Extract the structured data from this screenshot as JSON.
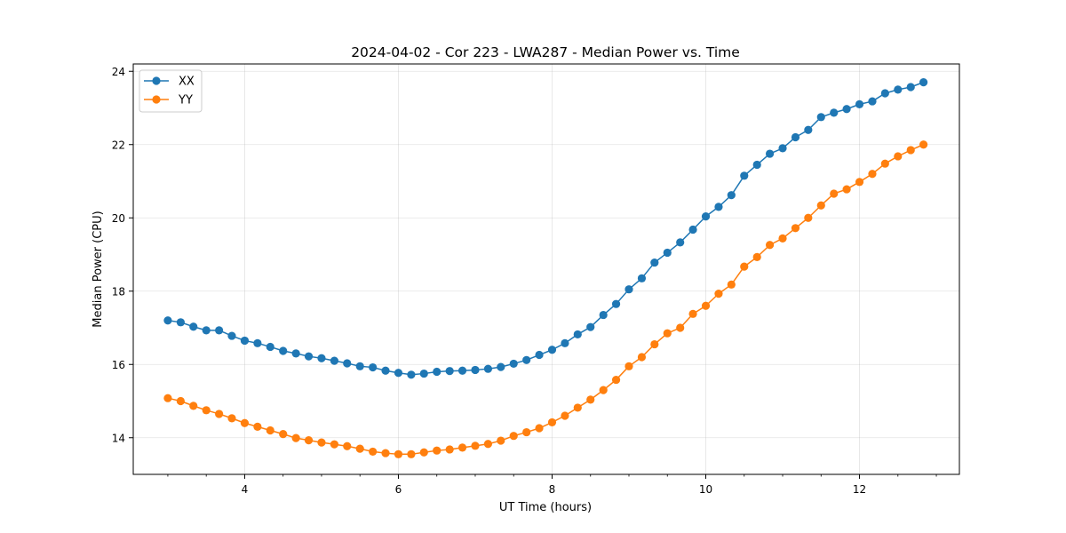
{
  "chart_data": {
    "type": "line",
    "title": "2024-04-02 - Cor 223 - LWA287 - Median Power vs. Time",
    "xlabel": "UT Time (hours)",
    "ylabel": "Median Power (CPU)",
    "xlim": [
      2.55,
      13.3
    ],
    "ylim": [
      13.0,
      24.2
    ],
    "xticks": [
      4,
      6,
      8,
      10,
      12
    ],
    "yticks": [
      14,
      16,
      18,
      20,
      22,
      24
    ],
    "xminor_step": 0.5,
    "grid": true,
    "legend_location": "upper-left",
    "x": [
      3.0,
      3.167,
      3.333,
      3.5,
      3.667,
      3.833,
      4.0,
      4.167,
      4.333,
      4.5,
      4.667,
      4.833,
      5.0,
      5.167,
      5.333,
      5.5,
      5.667,
      5.833,
      6.0,
      6.167,
      6.333,
      6.5,
      6.667,
      6.833,
      7.0,
      7.167,
      7.333,
      7.5,
      7.667,
      7.833,
      8.0,
      8.167,
      8.333,
      8.5,
      8.667,
      8.833,
      9.0,
      9.167,
      9.333,
      9.5,
      9.667,
      9.833,
      10.0,
      10.167,
      10.333,
      10.5,
      10.667,
      10.833,
      11.0,
      11.167,
      11.333,
      11.5,
      11.667,
      11.833,
      12.0,
      12.167,
      12.333,
      12.5,
      12.667,
      12.833
    ],
    "series": [
      {
        "name": "XX",
        "color": "#1f77b4",
        "values": [
          17.2,
          17.15,
          17.03,
          16.93,
          16.93,
          16.78,
          16.65,
          16.58,
          16.48,
          16.37,
          16.3,
          16.22,
          16.17,
          16.1,
          16.03,
          15.95,
          15.92,
          15.83,
          15.77,
          15.72,
          15.75,
          15.8,
          15.82,
          15.83,
          15.85,
          15.88,
          15.93,
          16.02,
          16.12,
          16.26,
          16.4,
          16.58,
          16.82,
          17.02,
          17.35,
          17.65,
          18.05,
          18.35,
          18.78,
          19.05,
          19.33,
          19.68,
          20.04,
          20.3,
          20.62,
          21.15,
          21.45,
          21.75,
          21.9,
          22.2,
          22.4,
          22.75,
          22.87,
          22.97,
          23.1,
          23.18,
          23.4,
          23.5,
          23.57,
          23.7
        ]
      },
      {
        "name": "YY",
        "color": "#ff7f0e",
        "values": [
          15.08,
          15.0,
          14.87,
          14.75,
          14.65,
          14.53,
          14.4,
          14.3,
          14.2,
          14.1,
          13.99,
          13.93,
          13.87,
          13.82,
          13.77,
          13.7,
          13.62,
          13.58,
          13.55,
          13.55,
          13.6,
          13.65,
          13.68,
          13.73,
          13.78,
          13.83,
          13.92,
          14.05,
          14.15,
          14.26,
          14.42,
          14.6,
          14.82,
          15.04,
          15.3,
          15.58,
          15.95,
          16.2,
          16.55,
          16.85,
          17.0,
          17.38,
          17.6,
          17.93,
          18.18,
          18.67,
          18.93,
          19.26,
          19.44,
          19.72,
          20.0,
          20.34,
          20.66,
          20.78,
          20.98,
          21.2,
          21.48,
          21.68,
          21.85,
          22.0
        ]
      }
    ]
  }
}
